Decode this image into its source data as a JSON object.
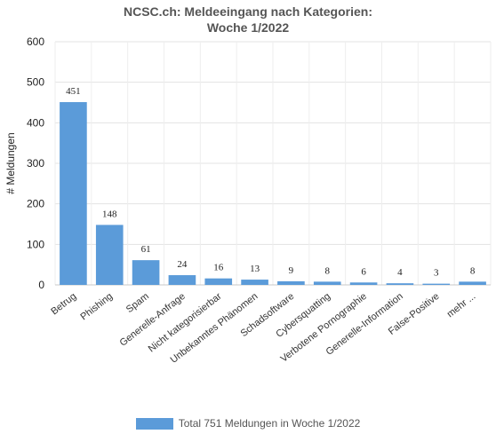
{
  "chart_data": {
    "type": "bar",
    "title_line1": "NCSC.ch: Meldeeingang nach Kategorien:",
    "title_line2": "Woche 1/2022",
    "ylabel": "# Meldungen",
    "xlabel": "",
    "ylim": [
      0,
      600
    ],
    "yticks": [
      "0",
      "100",
      "200",
      "300",
      "400",
      "500",
      "600"
    ],
    "grid": true,
    "legend_placement": "bottom",
    "categories": [
      "Betrug",
      "Phishing",
      "Spam",
      "Generelle-Anfrage",
      "Nicht kategorisierbar",
      "Unbekanntes Phänomen",
      "Schadsoftware",
      "Cybersquatting",
      "Verbotene Pornographie",
      "Generelle-Information",
      "False-Positive",
      "mehr ..."
    ],
    "series": [
      {
        "name": "Total 751 Meldungen in Woche 1/2022",
        "color": "#5b9bd9",
        "values": [
          451,
          148,
          61,
          24,
          16,
          13,
          9,
          8,
          6,
          4,
          3,
          8
        ],
        "labels": [
          "451",
          "148",
          "61",
          "24",
          "16",
          "13",
          "9",
          "8",
          "6",
          "4",
          "3",
          "8"
        ]
      }
    ]
  }
}
